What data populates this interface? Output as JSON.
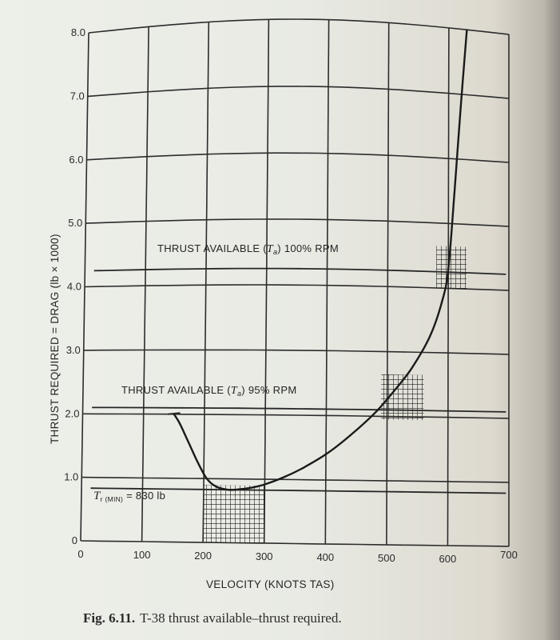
{
  "chart_data": {
    "type": "line",
    "title": "T-38 thrust available–thrust required",
    "caption": {
      "number": "Fig. 6.11.",
      "text": "T-38 thrust available–thrust required."
    },
    "xlabel": "VELOCITY (KNOTS TAS)",
    "ylabel": "THRUST REQUIRED = DRAG (lb × 1000)",
    "xlim": [
      0,
      700
    ],
    "ylim": [
      0,
      8.0
    ],
    "x_ticks": [
      "0",
      "100",
      "200",
      "300",
      "400",
      "500",
      "600",
      "700"
    ],
    "y_ticks": [
      "0",
      "1.0",
      "2.0",
      "3.0",
      "4.0",
      "5.0",
      "6.0",
      "7.0",
      "8.0"
    ],
    "grid": true,
    "series": [
      {
        "name": "Thrust required (drag)",
        "x": [
          150,
          160,
          175,
          190,
          205,
          220,
          240,
          260,
          280,
          300,
          330,
          360,
          400,
          440,
          480,
          510,
          540,
          570,
          590,
          600,
          610,
          620,
          630
        ],
        "y": [
          2.0,
          1.85,
          1.55,
          1.25,
          1.0,
          0.88,
          0.83,
          0.84,
          0.87,
          0.92,
          1.03,
          1.17,
          1.4,
          1.7,
          2.05,
          2.38,
          2.75,
          3.25,
          3.8,
          4.3,
          5.5,
          6.8,
          8.0
        ]
      },
      {
        "name": "Thrust available (Ta) 100% RPM",
        "x": [
          0,
          700
        ],
        "y": [
          4.25,
          4.25
        ]
      },
      {
        "name": "Thrust available (Ta) 95% RPM",
        "x": [
          0,
          700
        ],
        "y": [
          2.1,
          2.1
        ]
      },
      {
        "name": "Tr(min) = 830 lb",
        "x": [
          0,
          700
        ],
        "y": [
          0.83,
          0.83
        ]
      }
    ],
    "annotations": [
      {
        "text": "THRUST AVAILABLE (Ta) 100% RPM",
        "x": 300,
        "y": 4.55
      },
      {
        "text": "THRUST AVAILABLE (Ta) 95% RPM",
        "x": 280,
        "y": 2.35
      },
      {
        "text": "Tr (MIN) = 830 lb",
        "x": 130,
        "y": 0.6
      }
    ],
    "shaded_regions": [
      {
        "label": "min drag speed region",
        "x_range": [
          200,
          300
        ],
        "y_range": [
          0,
          0.9
        ]
      },
      {
        "label": "95% RPM intersection",
        "x_range": [
          490,
          560
        ],
        "y_range": [
          1.95,
          2.65
        ]
      },
      {
        "label": "100% RPM intersection",
        "x_range": [
          580,
          630
        ],
        "y_range": [
          4.0,
          4.65
        ]
      }
    ]
  },
  "labels": {
    "x_title": "VELOCITY (KNOTS TAS)",
    "y_title": "THRUST REQUIRED = DRAG (lb × 1000)",
    "ta100_pre": "THRUST AVAILABLE (",
    "ta100_sym": "T",
    "ta100_sub": "a",
    "ta100_post": ") 100% RPM",
    "ta95_pre": "THRUST AVAILABLE (",
    "ta95_sym": "T",
    "ta95_sub": "a",
    "ta95_post": ") 95% RPM",
    "trmin_sym": "T",
    "trmin_sub": "r (MIN)",
    "trmin_post": " = 830 lb",
    "caption_number": "Fig. 6.11.",
    "caption_text": "T-38 thrust available–thrust required."
  }
}
